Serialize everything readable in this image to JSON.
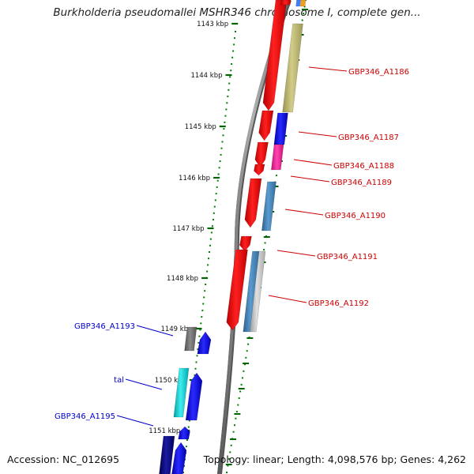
{
  "title": "Burkholderia pseudomallei MSHR346 chromosome I, complete gen...",
  "accession": "Accession: NC_012695",
  "summary": "Topology: linear; Length: 4,098,576 bp; Genes: 4,262",
  "ticks": [
    {
      "label": "1143 kbp"
    },
    {
      "label": "1144 kbp"
    },
    {
      "label": "1145 kbp"
    },
    {
      "label": "1146 kbp"
    },
    {
      "label": "1147 kbp"
    },
    {
      "label": "1148 kbp"
    },
    {
      "label": "1149 kbp"
    },
    {
      "label": "1150 kbp"
    },
    {
      "label": "1151 kbp"
    }
  ],
  "gene_labels": [
    {
      "text": "GBP346_A1186",
      "color": "#cc0000"
    },
    {
      "text": "GBP346_A1187",
      "color": "#cc0000"
    },
    {
      "text": "GBP346_A1188",
      "color": "#cc0000"
    },
    {
      "text": "GBP346_A1189",
      "color": "#cc0000"
    },
    {
      "text": "GBP346_A1190",
      "color": "#cc0000"
    },
    {
      "text": "GBP346_A1191",
      "color": "#cc0000"
    },
    {
      "text": "GBP346_A1192",
      "color": "#cc0000"
    },
    {
      "text": "GBP346_A1193",
      "color": "#0000cc"
    },
    {
      "text": "tal",
      "color": "#0000cc"
    },
    {
      "text": "GBP346_A1195",
      "color": "#0000cc"
    }
  ],
  "colors": {
    "cds_red": "#ff0000",
    "gene_blue": "#0000ff",
    "steel": "#4682b4",
    "silver": "#c0c0c0",
    "khaki": "#bdb76b",
    "magenta": "#ff1493",
    "cyan": "#00ced1",
    "gray": "#707070",
    "navy": "#000080",
    "backbone": "#808080",
    "tick_green": "#006400",
    "tick_dot": "#008000"
  }
}
